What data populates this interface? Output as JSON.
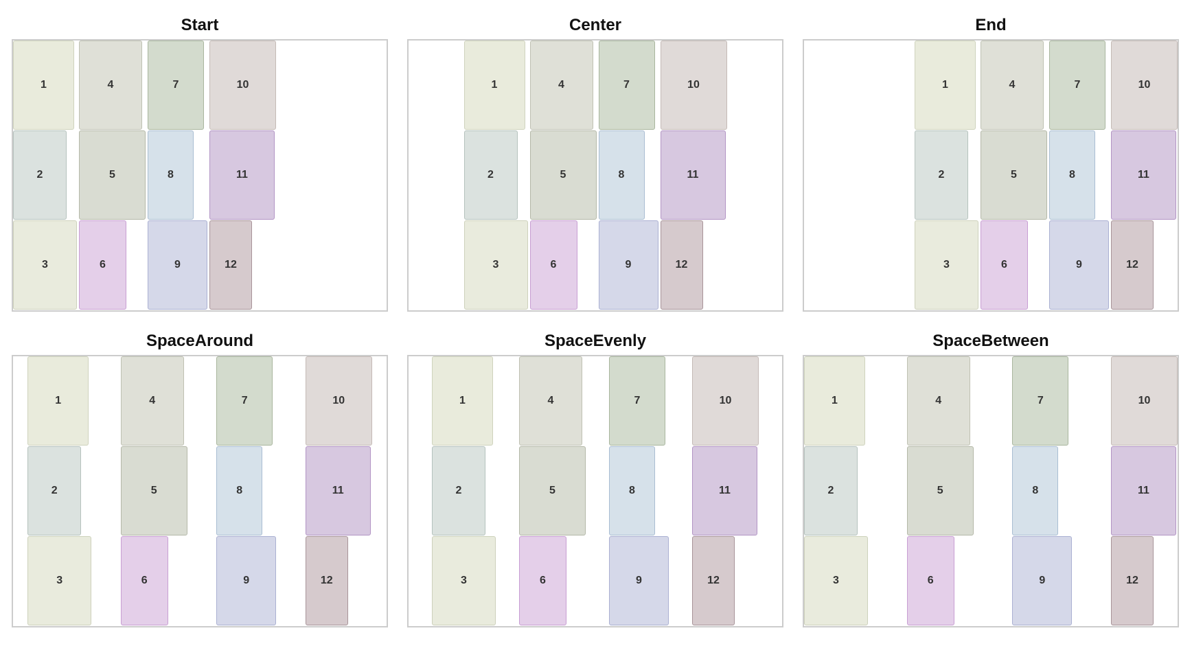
{
  "panels": [
    {
      "title": "Start",
      "columns": [
        {
          "items": [
            {
              "label": "1",
              "w": 89
            },
            {
              "label": "2",
              "w": 78
            },
            {
              "label": "3",
              "w": 93
            }
          ]
        },
        {
          "items": [
            {
              "label": "4",
              "w": 92
            },
            {
              "label": "5",
              "w": 97
            },
            {
              "label": "6",
              "w": 69
            }
          ]
        },
        {
          "items": [
            {
              "label": "7",
              "w": 82
            },
            {
              "label": "8",
              "w": 67
            },
            {
              "label": "9",
              "w": 87
            }
          ]
        },
        {
          "items": [
            {
              "label": "10",
              "w": 97
            },
            {
              "label": "11",
              "w": 95
            },
            {
              "label": "12",
              "w": 62
            }
          ]
        }
      ]
    },
    {
      "title": "Center",
      "columns": [
        {
          "items": [
            {
              "label": "1",
              "w": 89
            },
            {
              "label": "2",
              "w": 78
            },
            {
              "label": "3",
              "w": 93
            }
          ]
        },
        {
          "items": [
            {
              "label": "4",
              "w": 92
            },
            {
              "label": "5",
              "w": 97
            },
            {
              "label": "6",
              "w": 69
            }
          ]
        },
        {
          "items": [
            {
              "label": "7",
              "w": 82
            },
            {
              "label": "8",
              "w": 67
            },
            {
              "label": "9",
              "w": 87
            }
          ]
        },
        {
          "items": [
            {
              "label": "10",
              "w": 97
            },
            {
              "label": "11",
              "w": 95
            },
            {
              "label": "12",
              "w": 62
            }
          ]
        }
      ]
    },
    {
      "title": "End",
      "columns": [
        {
          "items": [
            {
              "label": "1",
              "w": 89
            },
            {
              "label": "2",
              "w": 78
            },
            {
              "label": "3",
              "w": 93
            }
          ]
        },
        {
          "items": [
            {
              "label": "4",
              "w": 92
            },
            {
              "label": "5",
              "w": 97
            },
            {
              "label": "6",
              "w": 69
            }
          ]
        },
        {
          "items": [
            {
              "label": "7",
              "w": 82
            },
            {
              "label": "8",
              "w": 67
            },
            {
              "label": "9",
              "w": 87
            }
          ]
        },
        {
          "items": [
            {
              "label": "10",
              "w": 97
            },
            {
              "label": "11",
              "w": 95
            },
            {
              "label": "12",
              "w": 62
            }
          ]
        }
      ]
    },
    {
      "title": "SpaceAround",
      "columns": [
        {
          "items": [
            {
              "label": "1",
              "w": 89
            },
            {
              "label": "2",
              "w": 78
            },
            {
              "label": "3",
              "w": 93
            }
          ]
        },
        {
          "items": [
            {
              "label": "4",
              "w": 92
            },
            {
              "label": "5",
              "w": 97
            },
            {
              "label": "6",
              "w": 69
            }
          ]
        },
        {
          "items": [
            {
              "label": "7",
              "w": 82
            },
            {
              "label": "8",
              "w": 67
            },
            {
              "label": "9",
              "w": 87
            }
          ]
        },
        {
          "items": [
            {
              "label": "10",
              "w": 97
            },
            {
              "label": "11",
              "w": 95
            },
            {
              "label": "12",
              "w": 62
            }
          ]
        }
      ]
    },
    {
      "title": "SpaceEvenly",
      "columns": [
        {
          "items": [
            {
              "label": "1",
              "w": 89
            },
            {
              "label": "2",
              "w": 78
            },
            {
              "label": "3",
              "w": 93
            }
          ]
        },
        {
          "items": [
            {
              "label": "4",
              "w": 92
            },
            {
              "label": "5",
              "w": 97
            },
            {
              "label": "6",
              "w": 69
            }
          ]
        },
        {
          "items": [
            {
              "label": "7",
              "w": 82
            },
            {
              "label": "8",
              "w": 67
            },
            {
              "label": "9",
              "w": 87
            }
          ]
        },
        {
          "items": [
            {
              "label": "10",
              "w": 97
            },
            {
              "label": "11",
              "w": 95
            },
            {
              "label": "12",
              "w": 62
            }
          ]
        }
      ]
    },
    {
      "title": "SpaceBetween",
      "columns": [
        {
          "items": [
            {
              "label": "1",
              "w": 89
            },
            {
              "label": "2",
              "w": 78
            },
            {
              "label": "3",
              "w": 93
            }
          ]
        },
        {
          "items": [
            {
              "label": "4",
              "w": 92
            },
            {
              "label": "5",
              "w": 97
            },
            {
              "label": "6",
              "w": 69
            }
          ]
        },
        {
          "items": [
            {
              "label": "7",
              "w": 82
            },
            {
              "label": "8",
              "w": 67
            },
            {
              "label": "9",
              "w": 87
            }
          ]
        },
        {
          "items": [
            {
              "label": "10",
              "w": 97
            },
            {
              "label": "11",
              "w": 95
            },
            {
              "label": "12",
              "w": 62
            }
          ]
        }
      ]
    }
  ],
  "colors": {
    "1": {
      "fill": "#e9ebdc",
      "border": "#cfd3bd"
    },
    "2": {
      "fill": "#dbe2df",
      "border": "#b5c2bd"
    },
    "3": {
      "fill": "#e9ebdd",
      "border": "#cdd1bb"
    },
    "4": {
      "fill": "#dfe0d7",
      "border": "#bfc1b3"
    },
    "5": {
      "fill": "#d9dcd2",
      "border": "#b4b8a8"
    },
    "6": {
      "fill": "#e4cfe9",
      "border": "#c89ed3"
    },
    "7": {
      "fill": "#d3dbcd",
      "border": "#a9b69e"
    },
    "8": {
      "fill": "#d6e1ea",
      "border": "#a9bdd2"
    },
    "9": {
      "fill": "#d5d8e9",
      "border": "#aab0d2"
    },
    "10": {
      "fill": "#e0dad8",
      "border": "#c4bab6"
    },
    "11": {
      "fill": "#d7c8e0",
      "border": "#b294c4"
    },
    "12": {
      "fill": "#d6cacd",
      "border": "#a89499"
    }
  }
}
